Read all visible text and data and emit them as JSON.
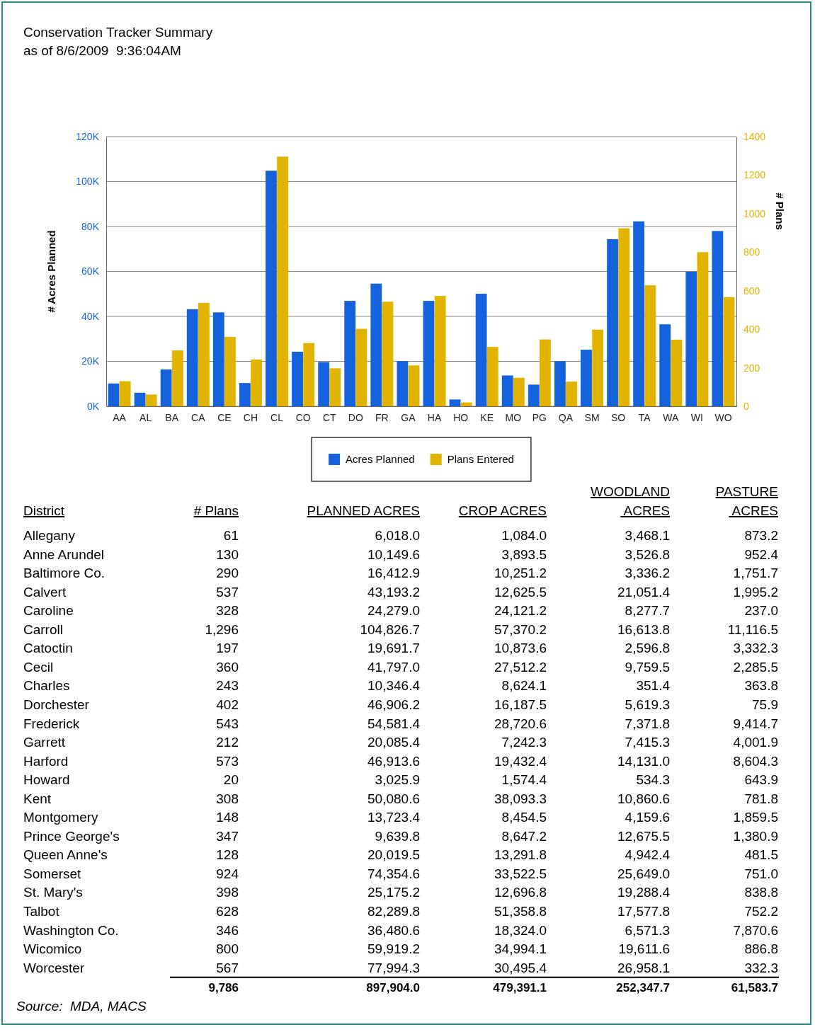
{
  "chart_data": [
    {
      "type": "bar",
      "title": "Conservation Tracker Summary",
      "subtitle": "as of 8/6/2009  9:36:04AM",
      "categories": [
        "AA",
        "AL",
        "BA",
        "CA",
        "CE",
        "CH",
        "CL",
        "CO",
        "CT",
        "DO",
        "FR",
        "GA",
        "HA",
        "HO",
        "KE",
        "MO",
        "PG",
        "QA",
        "SM",
        "SO",
        "TA",
        "WA",
        "WI",
        "WO"
      ],
      "series": [
        {
          "name": "Acres Planned",
          "color": "#1463dc",
          "values": [
            10149.6,
            6018.0,
            16412.9,
            43193.2,
            41797.0,
            10346.4,
            104826.7,
            24279.0,
            19691.7,
            46906.2,
            54581.4,
            20085.4,
            46913.6,
            3025.9,
            50080.6,
            13723.4,
            9639.8,
            20019.5,
            25175.2,
            74354.6,
            82289.8,
            36480.6,
            59919.2,
            77994.3
          ]
        },
        {
          "name": "Plans Entered",
          "color": "#e2b400",
          "axis": "y2",
          "values": [
            130,
            61,
            290,
            537,
            360,
            243,
            1296,
            328,
            197,
            402,
            543,
            212,
            573,
            20,
            308,
            148,
            347,
            128,
            398,
            924,
            628,
            346,
            800,
            567
          ]
        }
      ],
      "ylabel": "# Acres Planned",
      "y2label": "# Plans",
      "ylim": [
        0,
        120000
      ],
      "yticks": [
        {
          "value": 0,
          "label": "0K"
        },
        {
          "value": 20000,
          "label": "20K"
        },
        {
          "value": 40000,
          "label": "40K"
        },
        {
          "value": 60000,
          "label": "60K"
        },
        {
          "value": 80000,
          "label": "80K"
        },
        {
          "value": 100000,
          "label": "100K"
        },
        {
          "value": 120000,
          "label": "120K"
        }
      ],
      "y2lim": [
        0,
        1400
      ],
      "y2ticks": [
        0,
        200,
        400,
        600,
        800,
        1000,
        1200,
        1400
      ],
      "grid": "y",
      "legend": "bottom"
    },
    {
      "type": "other",
      "xlabel": "District",
      "categories": [
        "Allegany",
        "Anne Arundel",
        "Baltimore Co.",
        "Calvert",
        "Caroline",
        "Carroll",
        "Catoctin",
        "Cecil",
        "Charles",
        "Dorchester",
        "Frederick",
        "Garrett",
        "Harford",
        "Howard",
        "Kent",
        "Montgomery",
        "Prince George's",
        "Queen Anne's",
        "Somerset",
        "St. Mary's",
        "Talbot",
        "Washington Co.",
        "Wicomico",
        "Worcester"
      ],
      "series": [
        {
          "name": "# Plans",
          "values": [
            61,
            130,
            290,
            537,
            328,
            1296,
            197,
            360,
            243,
            402,
            543,
            212,
            573,
            20,
            308,
            148,
            347,
            128,
            924,
            398,
            628,
            346,
            800,
            567
          ],
          "value_labels": [
            "61",
            "130",
            "290",
            "537",
            "328",
            "1,296",
            "197",
            "360",
            "243",
            "402",
            "543",
            "212",
            "573",
            "20",
            "308",
            "148",
            "347",
            "128",
            "924",
            "398",
            "628",
            "346",
            "800",
            "567"
          ]
        },
        {
          "name": "PLANNED ACRES",
          "values": [
            6018.0,
            10149.6,
            16412.9,
            43193.2,
            24279.0,
            104826.7,
            19691.7,
            41797.0,
            10346.4,
            46906.2,
            54581.4,
            20085.4,
            46913.6,
            3025.9,
            50080.6,
            13723.4,
            9639.8,
            20019.5,
            74354.6,
            25175.2,
            82289.8,
            36480.6,
            59919.2,
            77994.3
          ],
          "value_labels": [
            "6,018.0",
            "10,149.6",
            "16,412.9",
            "43,193.2",
            "24,279.0",
            "104,826.7",
            "19,691.7",
            "41,797.0",
            "10,346.4",
            "46,906.2",
            "54,581.4",
            "20,085.4",
            "46,913.6",
            "3,025.9",
            "50,080.6",
            "13,723.4",
            "9,639.8",
            "20,019.5",
            "74,354.6",
            "25,175.2",
            "82,289.8",
            "36,480.6",
            "59,919.2",
            "77,994.3"
          ]
        },
        {
          "name": "CROP ACRES",
          "values": [
            1084.0,
            3893.5,
            10251.2,
            12625.5,
            24121.2,
            57370.2,
            10873.6,
            27512.2,
            8624.1,
            16187.5,
            28720.6,
            7242.3,
            19432.4,
            1574.4,
            38093.3,
            8454.5,
            8647.2,
            13291.8,
            33522.5,
            12696.8,
            51358.8,
            18324.0,
            34994.1,
            30495.4
          ],
          "value_labels": [
            "1,084.0",
            "3,893.5",
            "10,251.2",
            "12,625.5",
            "24,121.2",
            "57,370.2",
            "10,873.6",
            "27,512.2",
            "8,624.1",
            "16,187.5",
            "28,720.6",
            "7,242.3",
            "19,432.4",
            "1,574.4",
            "38,093.3",
            "8,454.5",
            "8,647.2",
            "13,291.8",
            "33,522.5",
            "12,696.8",
            "51,358.8",
            "18,324.0",
            "34,994.1",
            "30,495.4"
          ]
        },
        {
          "name": "WOODLAND ACRES",
          "values": [
            3468.1,
            3526.8,
            3336.2,
            21051.4,
            8277.7,
            16613.8,
            2596.8,
            9759.5,
            351.4,
            5619.3,
            7371.8,
            7415.3,
            14131.0,
            534.3,
            10860.6,
            4159.6,
            12675.5,
            4942.4,
            25649.0,
            19288.4,
            17577.8,
            6571.3,
            19611.6,
            26958.1
          ],
          "value_labels": [
            "3,468.1",
            "3,526.8",
            "3,336.2",
            "21,051.4",
            "8,277.7",
            "16,613.8",
            "2,596.8",
            "9,759.5",
            "351.4",
            "5,619.3",
            "7,371.8",
            "7,415.3",
            "14,131.0",
            "534.3",
            "10,860.6",
            "4,159.6",
            "12,675.5",
            "4,942.4",
            "25,649.0",
            "19,288.4",
            "17,577.8",
            "6,571.3",
            "19,611.6",
            "26,958.1"
          ]
        },
        {
          "name": "PASTURE ACRES",
          "values": [
            873.2,
            952.4,
            1751.7,
            1995.2,
            237.0,
            11116.5,
            3332.3,
            2285.5,
            363.8,
            75.9,
            9414.7,
            4001.9,
            8604.3,
            643.9,
            781.8,
            1859.5,
            1380.9,
            481.5,
            751.0,
            838.8,
            752.2,
            7870.6,
            886.8,
            332.3
          ],
          "value_labels": [
            "873.2",
            "952.4",
            "1,751.7",
            "1,995.2",
            "237.0",
            "11,116.5",
            "3,332.3",
            "2,285.5",
            "363.8",
            "75.9",
            "9,414.7",
            "4,001.9",
            "8,604.3",
            "643.9",
            "781.8",
            "1,859.5",
            "1,380.9",
            "481.5",
            "751.0",
            "838.8",
            "752.2",
            "7,870.6",
            "886.8",
            "332.3"
          ]
        }
      ],
      "totals": [
        "9,786",
        "897,904.0",
        "479,391.1",
        "252,347.7",
        "61,583.7"
      ],
      "annotations": [
        "Source:  MDA, MACS"
      ]
    }
  ]
}
